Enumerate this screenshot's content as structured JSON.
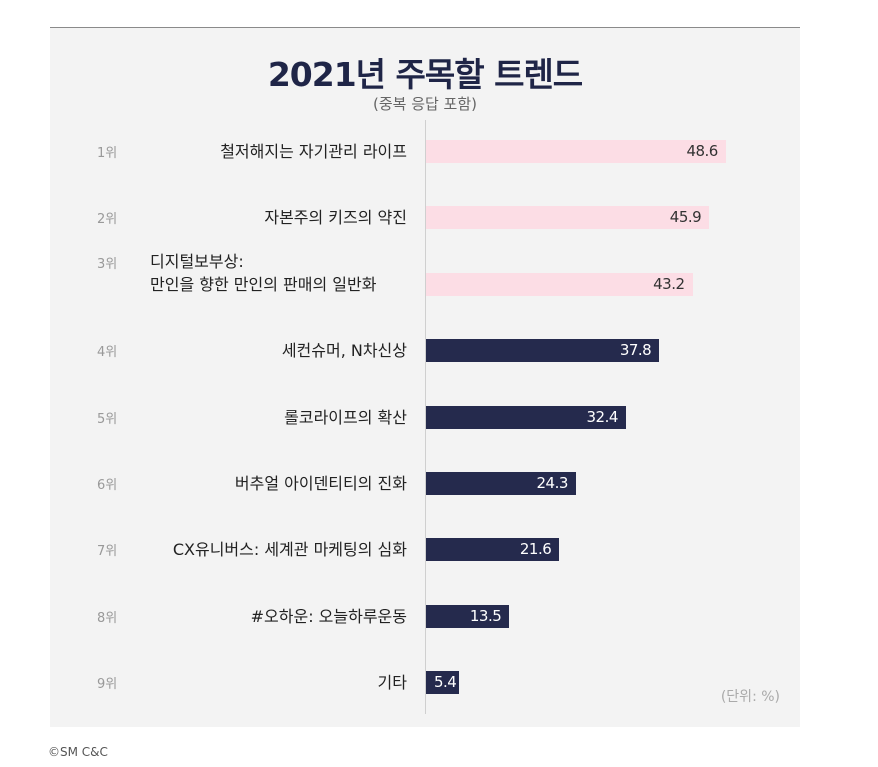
{
  "chart_data": {
    "type": "bar",
    "orientation": "horizontal",
    "title": "2021년 주목할 트렌드",
    "subtitle": "(중복 응답 포함)",
    "ranks": [
      "1위",
      "2위",
      "3위",
      "4위",
      "5위",
      "6위",
      "7위",
      "8위",
      "9위"
    ],
    "categories": [
      [
        "철저해지는 자기관리 라이프"
      ],
      [
        "자본주의 키즈의 약진"
      ],
      [
        "디지털보부상:",
        "만인을 향한 만인의 판매의 일반화"
      ],
      [
        "세컨슈머, N차신상"
      ],
      [
        "롤코라이프의 확산"
      ],
      [
        "버추얼 아이덴티티의 진화"
      ],
      [
        "CX유니버스: 세계관 마케팅의 심화"
      ],
      [
        "#오하운: 오늘하루운동"
      ],
      [
        "기타"
      ]
    ],
    "values": [
      48.6,
      45.9,
      43.2,
      37.8,
      32.4,
      24.3,
      21.6,
      13.5,
      5.4
    ],
    "value_labels": [
      "48.6",
      "45.9",
      "43.2",
      "37.8",
      "32.4",
      "24.3",
      "21.6",
      "13.5",
      "5.4"
    ],
    "highlight_top_n": 3,
    "highlight_color": "#fcdde5",
    "bar_color": "#252a4d",
    "unit_label": "(단위: %)",
    "xlim": [
      0,
      50
    ],
    "grid": false
  },
  "source": "©SM C&C"
}
